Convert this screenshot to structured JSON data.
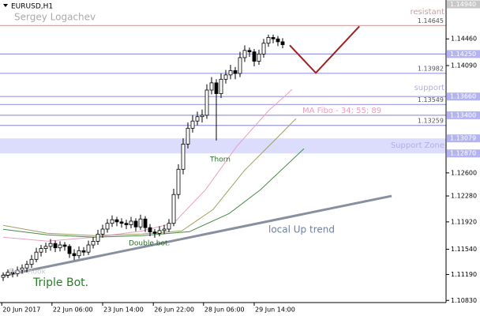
{
  "chart_data": {
    "type": "candlestick",
    "symbol": "EURUSD,H1",
    "author": "Sergey Logachev",
    "xlim": [
      -0.67,
      93.5
    ],
    "ylim": [
      1.108,
      1.15
    ],
    "xticks": [
      {
        "value": -0.3,
        "label": "20 Jun 2017"
      },
      {
        "value": 10.3,
        "label": "22 Jun 06:00"
      },
      {
        "value": 21,
        "label": "23 Jun 14:00"
      },
      {
        "value": 31.7,
        "label": "26 Jun 22:00"
      },
      {
        "value": 42.3,
        "label": "28 Jun 06:00"
      },
      {
        "value": 53,
        "label": "29 Jun 14:00"
      }
    ],
    "yticks": [
      {
        "value": 1.1446,
        "label": "1.14460"
      },
      {
        "value": 1.1409,
        "label": "1.14090"
      },
      {
        "value": 1.126,
        "label": "1.12600"
      },
      {
        "value": 1.1228,
        "label": "1.12280"
      },
      {
        "value": 1.1192,
        "label": "1.11920"
      },
      {
        "value": 1.1154,
        "label": "1.11540"
      },
      {
        "value": 1.1119,
        "label": "1.11190"
      },
      {
        "value": 1.1083,
        "label": "1.10830"
      }
    ],
    "bull_color": "#ffffff",
    "bear_color": "#000000",
    "ohlc": [
      [
        1.1115,
        1.1122,
        1.111,
        1.1118
      ],
      [
        1.1118,
        1.1126,
        1.1114,
        1.1122
      ],
      [
        1.1122,
        1.1127,
        1.1115,
        1.112
      ],
      [
        1.112,
        1.113,
        1.1116,
        1.1125
      ],
      [
        1.1125,
        1.1133,
        1.112,
        1.1128
      ],
      [
        1.1128,
        1.1138,
        1.1122,
        1.1133
      ],
      [
        1.1133,
        1.1146,
        1.1128,
        1.114
      ],
      [
        1.114,
        1.1156,
        1.1136,
        1.115
      ],
      [
        1.115,
        1.116,
        1.1144,
        1.1155
      ],
      [
        1.1155,
        1.1163,
        1.1149,
        1.1158
      ],
      [
        1.1158,
        1.1168,
        1.1152,
        1.1162
      ],
      [
        1.1162,
        1.1166,
        1.115,
        1.1156
      ],
      [
        1.1156,
        1.1165,
        1.1151,
        1.116
      ],
      [
        1.116,
        1.1164,
        1.1152,
        1.1158
      ],
      [
        1.1158,
        1.1161,
        1.1142,
        1.1148
      ],
      [
        1.1148,
        1.1154,
        1.1139,
        1.1145
      ],
      [
        1.1145,
        1.1158,
        1.1141,
        1.1152
      ],
      [
        1.1152,
        1.1157,
        1.1145,
        1.115
      ],
      [
        1.115,
        1.1166,
        1.1146,
        1.116
      ],
      [
        1.116,
        1.1171,
        1.1155,
        1.1165
      ],
      [
        1.1165,
        1.1181,
        1.116,
        1.1175
      ],
      [
        1.1175,
        1.1188,
        1.117,
        1.1182
      ],
      [
        1.1182,
        1.1196,
        1.1177,
        1.119
      ],
      [
        1.119,
        1.1201,
        1.1185,
        1.1195
      ],
      [
        1.1195,
        1.1199,
        1.1186,
        1.1192
      ],
      [
        1.1192,
        1.1197,
        1.1184,
        1.119
      ],
      [
        1.119,
        1.1195,
        1.1182,
        1.1188
      ],
      [
        1.1188,
        1.1199,
        1.1183,
        1.1193
      ],
      [
        1.1193,
        1.1197,
        1.1179,
        1.1185
      ],
      [
        1.1185,
        1.1202,
        1.1181,
        1.1196
      ],
      [
        1.1196,
        1.12,
        1.1178,
        1.1184
      ],
      [
        1.1184,
        1.1189,
        1.1172,
        1.1178
      ],
      [
        1.1178,
        1.1182,
        1.117,
        1.1176
      ],
      [
        1.1176,
        1.1186,
        1.1172,
        1.118
      ],
      [
        1.118,
        1.1188,
        1.1175,
        1.1182
      ],
      [
        1.1182,
        1.1196,
        1.1178,
        1.119
      ],
      [
        1.119,
        1.1238,
        1.1186,
        1.123
      ],
      [
        1.123,
        1.1272,
        1.1224,
        1.1265
      ],
      [
        1.1265,
        1.1308,
        1.1258,
        1.13
      ],
      [
        1.13,
        1.133,
        1.1294,
        1.1322
      ],
      [
        1.1322,
        1.134,
        1.1316,
        1.1332
      ],
      [
        1.1332,
        1.1345,
        1.1326,
        1.1338
      ],
      [
        1.1338,
        1.1348,
        1.133,
        1.134
      ],
      [
        1.134,
        1.1383,
        1.1335,
        1.1375
      ],
      [
        1.1375,
        1.1393,
        1.1369,
        1.1385
      ],
      [
        1.1385,
        1.139,
        1.1305,
        1.137
      ],
      [
        1.137,
        1.1398,
        1.1364,
        1.139
      ],
      [
        1.139,
        1.1403,
        1.1384,
        1.1396
      ],
      [
        1.1396,
        1.141,
        1.139,
        1.1402
      ],
      [
        1.1402,
        1.1407,
        1.139,
        1.1398
      ],
      [
        1.1398,
        1.1428,
        1.1393,
        1.142
      ],
      [
        1.142,
        1.1437,
        1.1414,
        1.143
      ],
      [
        1.143,
        1.1434,
        1.1421,
        1.1428
      ],
      [
        1.1428,
        1.1432,
        1.1408,
        1.1415
      ],
      [
        1.1415,
        1.1431,
        1.141,
        1.1425
      ],
      [
        1.1425,
        1.1446,
        1.142,
        1.144
      ],
      [
        1.144,
        1.1452,
        1.1435,
        1.1448
      ],
      [
        1.1448,
        1.1452,
        1.144,
        1.1446
      ],
      [
        1.1446,
        1.145,
        1.1436,
        1.1442
      ],
      [
        1.1442,
        1.1447,
        1.1433,
        1.1438
      ]
    ],
    "ma_label": "MA Fibo - 34; 55; 89",
    "ma_lines": [
      {
        "color": "#e8a0c0",
        "x": [
          0,
          9.3,
          19.3,
          29.3,
          36,
          42.7,
          49.3,
          56,
          61
        ],
        "values": [
          1.11707,
          1.11652,
          1.11707,
          1.11794,
          1.11904,
          1.12365,
          1.12968,
          1.13462,
          1.13758
        ]
      },
      {
        "color": "#a0a060",
        "x": [
          0,
          9.3,
          19.3,
          29.3,
          37.7,
          44.3,
          51,
          57.7,
          61.8
        ],
        "values": [
          1.11872,
          1.11762,
          1.11729,
          1.11751,
          1.11795,
          1.12091,
          1.12639,
          1.13078,
          1.13352
        ]
      },
      {
        "color": "#4a8a4a",
        "x": [
          0,
          9.3,
          19.3,
          29.3,
          39.3,
          47.7,
          54.3,
          63.5
        ],
        "values": [
          1.11817,
          1.1174,
          1.11707,
          1.11729,
          1.11784,
          1.12036,
          1.12365,
          1.12936
        ]
      }
    ],
    "trend_line": {
      "label": "local Up trend",
      "color": "#8890a0",
      "x": [
        -0.2,
        82
      ],
      "values": [
        1.1117,
        1.1228
      ]
    },
    "forecast_line": {
      "color": "#a02020",
      "x": [
        60.5,
        66,
        75.2
      ],
      "values": [
        1.14372,
        1.13988,
        1.14635
      ]
    },
    "price_marker": {
      "value": 1.1494,
      "label": "1.14940"
    },
    "levels": [
      {
        "value": 1.14645,
        "label": "1.14645",
        "color": "#d8a8a8",
        "note": "resistant"
      },
      {
        "value": 1.1425,
        "axis_label": "1.14250",
        "color": "#9a9ae0"
      },
      {
        "value": 1.13982,
        "label": "1.13982",
        "color": "#9a9ae0"
      },
      {
        "value": 1.1366,
        "axis_label": "1.13660",
        "color": "#9a9ae0",
        "note": "support"
      },
      {
        "value": 1.13549,
        "label": "1.13549",
        "color": "#9a9ae0"
      },
      {
        "value": 1.134,
        "axis_label": "1.13400",
        "color": "#9a9ae0"
      },
      {
        "value": 1.13259,
        "label": "1.13259",
        "color": "#9a9ae0"
      }
    ],
    "zone": {
      "from": 1.1287,
      "to": 1.13079,
      "from_label": "1.12870",
      "to_label": "1.13079",
      "text": "Support Zone",
      "color": "#dcdcfc"
    },
    "annotations": {
      "thorn": "Thorn",
      "double_bot": "Double bot.",
      "triple_bot": "Triple Bot.",
      "bear_hook": "Bear Hook"
    }
  }
}
